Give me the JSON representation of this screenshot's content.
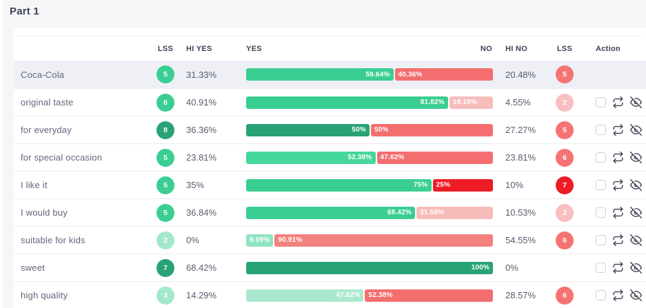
{
  "page": {
    "title": "Part 1"
  },
  "table": {
    "headers": {
      "lss_left": "LSS",
      "hi_yes": "HI YES",
      "yes": "YES",
      "no": "NO",
      "hi_no": "HI NO",
      "lss_right": "LSS",
      "action": "Action"
    },
    "action_icons": [
      "checkbox",
      "repeat-icon",
      "eye-off-icon"
    ],
    "colors": {
      "green_medium": "#3bce93",
      "green_dark": "#29a376",
      "green_pale": "#a4e8ca",
      "red_medium": "#f36e6f",
      "red_pale": "#f6bcba",
      "red_vivid": "#ee1c25",
      "row_highlight": "#eef0f6"
    },
    "rows": [
      {
        "label": "Coca-Cola",
        "lss_left": {
          "value": "5",
          "color": "#3bce93"
        },
        "hi_yes": "31.33%",
        "bar": {
          "yes": {
            "pct": 59.64,
            "label": "59.64%",
            "color": "#3bce93"
          },
          "no": {
            "pct": 40.36,
            "label": "40.36%",
            "color": "#f36e6f"
          }
        },
        "hi_no": "20.48%",
        "lss_right": {
          "value": "5",
          "color": "#f57373"
        },
        "actions": false,
        "highlighted": true
      },
      {
        "label": "original taste",
        "lss_left": {
          "value": "6",
          "color": "#3bce93"
        },
        "hi_yes": "40.91%",
        "bar": {
          "yes": {
            "pct": 81.82,
            "label": "81.82%",
            "color": "#3bce93"
          },
          "no": {
            "pct": 18.18,
            "label": "18.18%",
            "color": "#f7bdbb"
          }
        },
        "hi_no": "4.55%",
        "lss_right": {
          "value": "2",
          "color": "#f8bfc2"
        },
        "actions": true,
        "highlighted": false
      },
      {
        "label": "for everyday",
        "lss_left": {
          "value": "8",
          "color": "#29a376"
        },
        "hi_yes": "36.36%",
        "bar": {
          "yes": {
            "pct": 50,
            "label": "50%",
            "color": "#29a376"
          },
          "no": {
            "pct": 50,
            "label": "50%",
            "color": "#f36e6f"
          }
        },
        "hi_no": "27.27%",
        "lss_right": {
          "value": "5",
          "color": "#f57373"
        },
        "actions": true,
        "highlighted": false
      },
      {
        "label": "for special occasion",
        "lss_left": {
          "value": "5",
          "color": "#3bce93"
        },
        "hi_yes": "23.81%",
        "bar": {
          "yes": {
            "pct": 52.38,
            "label": "52.38%",
            "color": "#45d79b"
          },
          "no": {
            "pct": 47.62,
            "label": "47.62%",
            "color": "#f36e6f"
          }
        },
        "hi_no": "23.81%",
        "lss_right": {
          "value": "6",
          "color": "#f57373"
        },
        "actions": true,
        "highlighted": false
      },
      {
        "label": "I like it",
        "lss_left": {
          "value": "5",
          "color": "#3bce93"
        },
        "hi_yes": "35%",
        "bar": {
          "yes": {
            "pct": 75,
            "label": "75%",
            "color": "#3bce93"
          },
          "no": {
            "pct": 25,
            "label": "25%",
            "color": "#ee1c25"
          }
        },
        "hi_no": "10%",
        "lss_right": {
          "value": "7",
          "color": "#ee1c25"
        },
        "actions": true,
        "highlighted": false
      },
      {
        "label": "I would buy",
        "lss_left": {
          "value": "5",
          "color": "#3bce93"
        },
        "hi_yes": "36.84%",
        "bar": {
          "yes": {
            "pct": 68.42,
            "label": "68.42%",
            "color": "#3bce93"
          },
          "no": {
            "pct": 31.58,
            "label": "31.58%",
            "color": "#f6bcba"
          }
        },
        "hi_no": "10.53%",
        "lss_right": {
          "value": "2",
          "color": "#f8bfc2"
        },
        "actions": true,
        "highlighted": false
      },
      {
        "label": "suitable for kids",
        "lss_left": {
          "value": "2",
          "color": "#a4e8ca"
        },
        "hi_yes": "0%",
        "bar": {
          "yes": {
            "pct": 9.09,
            "label": "9.09%",
            "color": "#8fe4c1"
          },
          "no": {
            "pct": 90.91,
            "label": "90.91%",
            "color": "#f3817d"
          }
        },
        "hi_no": "54.55%",
        "lss_right": {
          "value": "6",
          "color": "#f57373"
        },
        "actions": true,
        "highlighted": false
      },
      {
        "label": "sweet",
        "lss_left": {
          "value": "7",
          "color": "#29a376"
        },
        "hi_yes": "68.42%",
        "bar": {
          "yes": {
            "pct": 100,
            "label": "100%",
            "color": "#29a376"
          },
          "no": null
        },
        "hi_no": "0%",
        "lss_right": null,
        "actions": true,
        "highlighted": false
      },
      {
        "label": "high quality",
        "lss_left": {
          "value": "3",
          "color": "#a4e8ca"
        },
        "hi_yes": "14.29%",
        "bar": {
          "yes": {
            "pct": 47.62,
            "label": "47.62%",
            "color": "#abe9cf"
          },
          "no": {
            "pct": 52.38,
            "label": "52.38%",
            "color": "#f36e6f"
          }
        },
        "hi_no": "28.57%",
        "lss_right": {
          "value": "6",
          "color": "#f57373"
        },
        "actions": true,
        "highlighted": false
      }
    ]
  }
}
